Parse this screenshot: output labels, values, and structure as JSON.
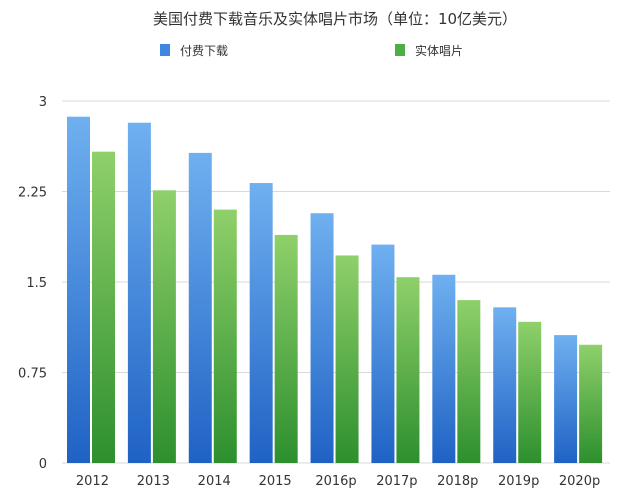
{
  "chart_data": {
    "type": "bar",
    "title": "美国付费下载音乐及实体唱片市场（单位：10亿美元）",
    "xlabel": "",
    "ylabel": "",
    "ylim": [
      0,
      3
    ],
    "yticks": [
      "0",
      "0.75",
      "1.5",
      "2.25",
      "3"
    ],
    "categories": [
      "2012",
      "2013",
      "2014",
      "2015",
      "2016p",
      "2017p",
      "2018p",
      "2019p",
      "2020p"
    ],
    "grid": true,
    "legend": "top",
    "series": [
      {
        "name": "付费下载",
        "values": [
          2.87,
          2.82,
          2.57,
          2.32,
          2.07,
          1.81,
          1.56,
          1.29,
          1.06
        ],
        "color_top": "#6fb0f0",
        "color_bottom": "#1f62c4"
      },
      {
        "name": "实体唱片",
        "values": [
          2.58,
          2.26,
          2.1,
          1.89,
          1.72,
          1.54,
          1.35,
          1.17,
          0.98
        ],
        "color_top": "#8fd06a",
        "color_bottom": "#2d8f2e"
      }
    ]
  }
}
